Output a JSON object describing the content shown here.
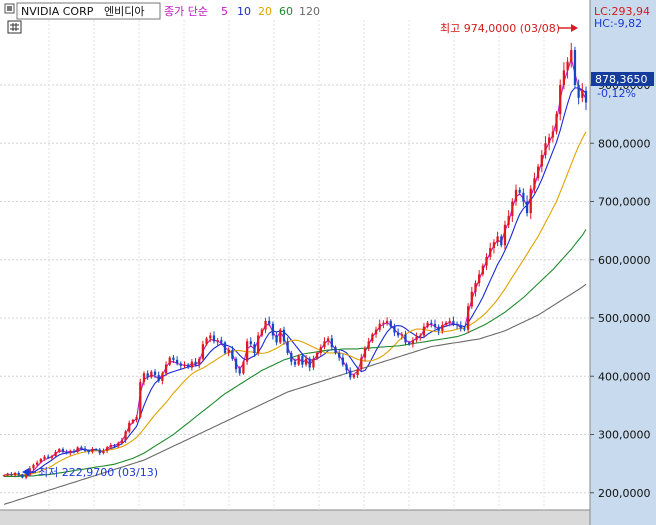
{
  "header": {
    "stock_name": "NVIDIA CORP",
    "stock_name_kr": "엔비디아",
    "ma_label": "종가 단순",
    "ma_periods": [
      {
        "label": "5",
        "color": "#c218c2"
      },
      {
        "label": "10",
        "color": "#1a2ad6"
      },
      {
        "label": "20",
        "color": "#e0a300"
      },
      {
        "label": "60",
        "color": "#1f8a2e"
      },
      {
        "label": "120",
        "color": "#6a6a6a"
      }
    ]
  },
  "readouts": {
    "lc": "LC:293,94",
    "hc": "HC:-9,82",
    "last_price": "878,3650",
    "change_pct": "-0,12%"
  },
  "annotations": {
    "high": "최고 974,0000 (03/08)",
    "low": "최저 222,9700 (03/13)"
  },
  "colors": {
    "up": "#e0191e",
    "down": "#1547c7",
    "axis_bg": "#c8dbee",
    "price_tag_bg": "#143c9e",
    "lc_color": "#d61a1a",
    "hc_color": "#1a3ad6"
  },
  "chart_data": {
    "type": "line",
    "title": "",
    "ylim": [
      150,
      1000
    ],
    "yticks": [
      {
        "value": 200,
        "label": "200,0000"
      },
      {
        "value": 300,
        "label": "300,0000"
      },
      {
        "value": 400,
        "label": "400,0000"
      },
      {
        "value": 500,
        "label": "500,0000"
      },
      {
        "value": 600,
        "label": "600,0000"
      },
      {
        "value": 700,
        "label": "700,0000"
      },
      {
        "value": 800,
        "label": "800,0000"
      },
      {
        "value": 900,
        "label": "900,0000"
      }
    ],
    "grid": true,
    "series": [
      {
        "name": "",
        "kind": "price",
        "values": [
          230,
          232,
          230,
          234,
          231,
          226,
          230,
          242,
          248,
          252,
          258,
          262,
          260,
          263,
          270,
          275,
          270,
          268,
          272,
          270,
          278,
          276,
          272,
          270,
          275,
          274,
          268,
          272,
          278,
          282,
          280,
          285,
          290,
          305,
          320,
          325,
          330,
          390,
          405,
          398,
          408,
          402,
          392,
          405,
          420,
          432,
          428,
          422,
          418,
          420,
          415,
          425,
          420,
          430,
          455,
          465,
          470,
          460,
          462,
          458,
          440,
          445,
          430,
          412,
          405,
          425,
          460,
          455,
          440,
          470,
          480,
          495,
          490,
          470,
          458,
          480,
          460,
          440,
          425,
          420,
          435,
          420,
          430,
          415,
          430,
          440,
          450,
          460,
          465,
          450,
          440,
          432,
          420,
          410,
          398,
          402,
          412,
          432,
          448,
          460,
          472,
          480,
          490,
          492,
          495,
          485,
          475,
          470,
          472,
          458,
          455,
          462,
          468,
          470,
          485,
          492,
          490,
          485,
          478,
          488,
          492,
          495,
          490,
          488,
          482,
          480,
          520,
          545,
          560,
          575,
          590,
          605,
          620,
          630,
          640,
          625,
          660,
          675,
          700,
          720,
          715,
          700,
          680,
          722,
          740,
          760,
          780,
          800,
          810,
          820,
          850,
          900,
          925,
          940,
          960,
          900,
          878,
          890,
          870
        ]
      },
      {
        "name": "",
        "kind": "ma",
        "period": 5,
        "color": "#c218c2",
        "values": [
          230,
          232,
          231,
          232,
          230,
          229,
          229,
          233,
          238,
          245,
          252,
          257,
          259,
          262,
          267,
          272,
          271,
          270,
          271,
          270,
          275,
          276,
          274,
          272,
          274,
          274,
          270,
          271,
          276,
          280,
          281,
          284,
          289,
          300,
          314,
          321,
          328,
          370,
          395,
          398,
          402,
          400,
          396,
          402,
          415,
          425,
          425,
          422,
          420,
          419,
          418,
          421,
          420,
          425,
          443,
          455,
          463,
          462,
          460,
          457,
          448,
          446,
          438,
          422,
          412,
          422,
          447,
          452,
          447,
          462,
          474,
          488,
          489,
          476,
          466,
          476,
          466,
          450,
          434,
          426,
          431,
          424,
          428,
          420,
          428,
          436,
          446,
          456,
          462,
          455,
          446,
          436,
          426,
          416,
          404,
          403,
          409,
          427,
          442,
          455,
          467,
          476,
          485,
          489,
          492,
          488,
          480,
          474,
          472,
          462,
          458,
          461,
          465,
          468,
          479,
          488,
          489,
          486,
          481,
          486,
          490,
          492,
          490,
          488,
          484,
          481,
          508,
          532,
          550,
          566,
          582,
          598,
          612,
          624,
          634,
          630,
          650,
          665,
          688,
          708,
          713,
          705,
          692,
          708,
          726,
          748,
          768,
          788,
          802,
          814,
          838,
          875,
          905,
          925,
          945,
          920,
          895,
          888,
          876
        ]
      },
      {
        "name": "",
        "kind": "ma",
        "period": 10,
        "color": "#1a2ad6",
        "values": [
          230,
          231,
          231,
          232,
          231,
          230,
          230,
          232,
          235,
          239,
          243,
          248,
          252,
          256,
          261,
          265,
          267,
          268,
          269,
          270,
          272,
          274,
          274,
          273,
          273,
          274,
          272,
          272,
          274,
          276,
          278,
          281,
          284,
          290,
          298,
          306,
          314,
          332,
          350,
          365,
          378,
          388,
          394,
          399,
          403,
          406,
          408,
          410,
          412,
          414,
          416,
          417,
          418,
          419,
          426,
          434,
          442,
          448,
          452,
          456,
          454,
          452,
          449,
          443,
          436,
          430,
          428,
          432,
          435,
          441,
          451,
          464,
          474,
          478,
          476,
          478,
          476,
          470,
          462,
          454,
          446,
          438,
          432,
          428,
          428,
          430,
          434,
          438,
          444,
          446,
          446,
          446,
          444,
          440,
          432,
          423,
          414,
          408,
          410,
          420,
          432,
          444,
          455,
          466,
          476,
          483,
          486,
          487,
          486,
          482,
          477,
          473,
          469,
          466,
          467,
          472,
          476,
          479,
          482,
          484,
          486,
          488,
          489,
          489,
          487,
          485,
          492,
          502,
          513,
          524,
          536,
          550,
          564,
          578,
          592,
          603,
          616,
          630,
          646,
          663,
          678,
          688,
          694,
          702,
          712,
          724,
          738,
          754,
          770,
          786,
          802,
          822,
          846,
          868,
          888,
          895,
          895,
          892,
          886
        ]
      },
      {
        "name": "",
        "kind": "ma",
        "period": 20,
        "color": "#e0a300",
        "values": [
          230,
          230,
          231,
          231,
          231,
          231,
          231,
          232,
          233,
          235,
          237,
          240,
          243,
          246,
          250,
          254,
          257,
          260,
          263,
          265,
          267,
          269,
          270,
          271,
          272,
          272,
          272,
          272,
          273,
          274,
          275,
          277,
          279,
          282,
          286,
          290,
          295,
          302,
          310,
          318,
          326,
          334,
          341,
          348,
          355,
          363,
          371,
          378,
          385,
          392,
          398,
          404,
          408,
          411,
          414,
          418,
          422,
          426,
          430,
          434,
          438,
          441,
          443,
          444,
          444,
          443,
          442,
          442,
          441,
          440,
          439,
          440,
          442,
          445,
          448,
          452,
          456,
          459,
          461,
          462,
          461,
          459,
          456,
          453,
          450,
          447,
          444,
          441,
          440,
          440,
          440,
          440,
          439,
          437,
          435,
          432,
          429,
          427,
          426,
          426,
          427,
          429,
          432,
          436,
          441,
          447,
          453,
          460,
          466,
          472,
          476,
          479,
          481,
          481,
          480,
          479,
          478,
          477,
          476,
          476,
          477,
          478,
          479,
          481,
          482,
          483,
          486,
          490,
          494,
          499,
          504,
          510,
          517,
          524,
          532,
          541,
          550,
          560,
          570,
          580,
          590,
          600,
          610,
          620,
          630,
          640,
          652,
          664,
          676,
          688,
          700,
          716,
          732,
          748,
          764,
          780,
          795,
          808,
          820
        ]
      },
      {
        "name": "",
        "kind": "ma",
        "period": 60,
        "color": "#1f8a2e",
        "values": [
          228,
          228,
          228,
          228,
          228,
          229,
          229,
          229,
          229,
          230,
          230,
          231,
          231,
          232,
          233,
          234,
          235,
          236,
          237,
          238,
          239,
          240,
          241,
          242,
          243,
          244,
          245,
          246,
          247,
          248,
          249,
          251,
          253,
          255,
          257,
          259,
          262,
          265,
          268,
          272,
          276,
          280,
          284,
          288,
          292,
          296,
          300,
          305,
          310,
          315,
          320,
          325,
          330,
          335,
          340,
          345,
          350,
          355,
          360,
          365,
          370,
          374,
          378,
          382,
          386,
          390,
          394,
          398,
          402,
          406,
          410,
          413,
          416,
          419,
          422,
          425,
          428,
          430,
          432,
          434,
          436,
          438,
          439,
          440,
          441,
          442,
          443,
          444,
          445,
          445,
          446,
          446,
          447,
          447,
          447,
          447,
          447,
          448,
          448,
          448,
          449,
          449,
          450,
          450,
          451,
          451,
          452,
          452,
          453,
          454,
          455,
          456,
          457,
          458,
          459,
          460,
          461,
          462,
          463,
          464,
          465,
          466,
          467,
          468,
          470,
          472,
          475,
          478,
          481,
          484,
          487,
          490,
          494,
          498,
          502,
          506,
          510,
          515,
          520,
          525,
          530,
          535,
          541,
          547,
          553,
          559,
          565,
          571,
          577,
          583,
          590,
          597,
          604,
          611,
          618,
          626,
          634,
          642,
          652
        ]
      },
      {
        "name": "",
        "kind": "ma",
        "period": 120,
        "color": "#6a6a6a",
        "values": [
          180,
          182,
          184,
          186,
          188,
          190,
          192,
          194,
          196,
          198,
          200,
          202,
          204,
          206,
          208,
          210,
          212,
          214,
          216,
          218,
          220,
          222,
          224,
          226,
          228,
          230,
          232,
          234,
          236,
          238,
          240,
          242,
          244,
          246,
          248,
          250,
          252,
          254,
          256,
          259,
          262,
          265,
          268,
          271,
          274,
          277,
          280,
          283,
          286,
          289,
          292,
          295,
          298,
          301,
          304,
          307,
          310,
          313,
          316,
          319,
          322,
          325,
          328,
          331,
          334,
          337,
          340,
          343,
          346,
          349,
          352,
          355,
          358,
          361,
          364,
          367,
          370,
          373,
          375,
          377,
          379,
          381,
          383,
          385,
          387,
          389,
          391,
          393,
          395,
          397,
          399,
          401,
          403,
          405,
          407,
          409,
          411,
          413,
          415,
          417,
          419,
          421,
          423,
          425,
          427,
          429,
          431,
          433,
          435,
          437,
          439,
          441,
          443,
          445,
          447,
          449,
          451,
          452,
          453,
          454,
          455,
          456,
          457,
          458,
          459,
          460,
          461,
          462,
          463,
          464,
          466,
          468,
          470,
          472,
          474,
          476,
          478,
          481,
          484,
          487,
          490,
          493,
          496,
          499,
          502,
          505,
          509,
          513,
          517,
          521,
          525,
          529,
          533,
          537,
          541,
          545,
          549,
          553,
          558
        ]
      }
    ]
  }
}
